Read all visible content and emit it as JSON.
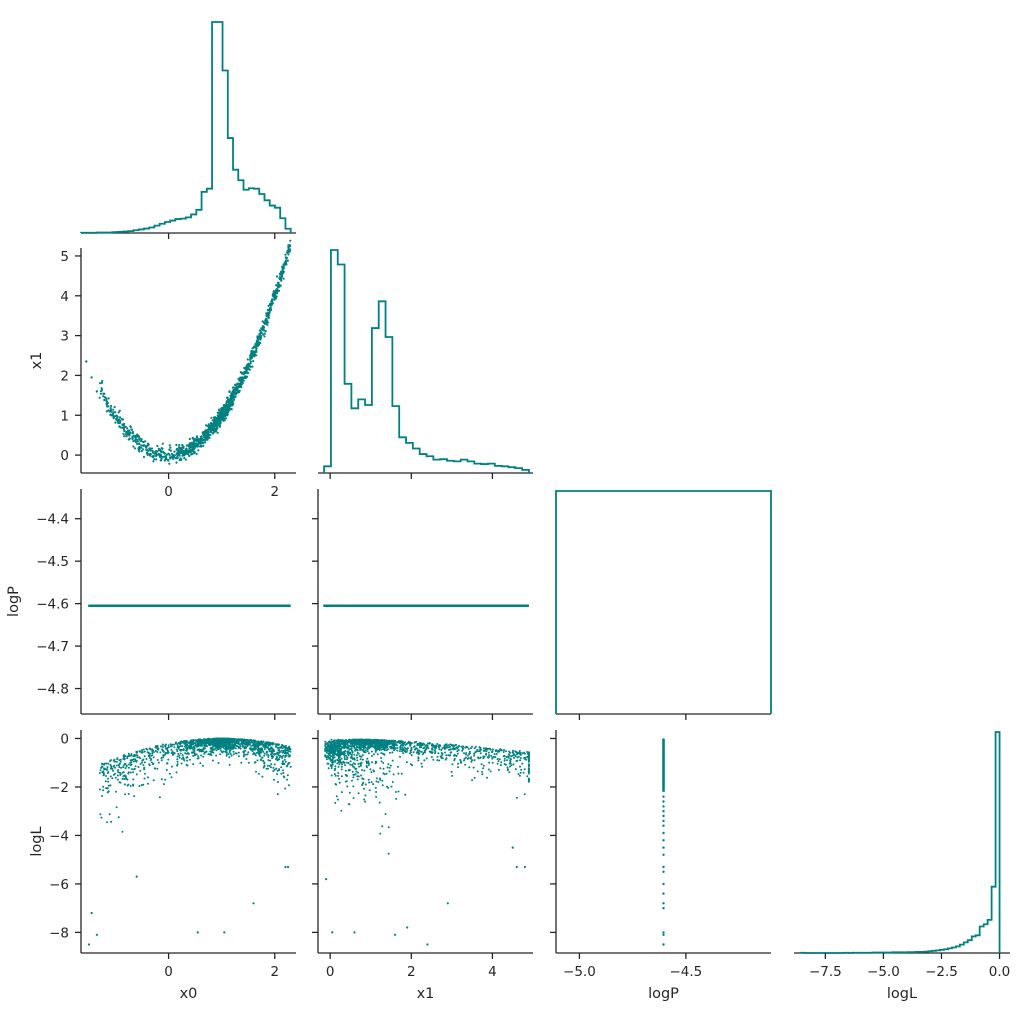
{
  "accent_color": "#008080",
  "text_color": "#262626",
  "chart_data": [
    {
      "id": "h_x0",
      "type": "area",
      "variable": "x0",
      "xlim": [
        -1.65,
        2.4
      ],
      "bin_edges": [
        -1.65,
        2.3
      ],
      "counts": [
        1,
        1,
        1,
        2,
        2,
        2,
        4,
        5,
        7,
        9,
        13,
        17,
        21,
        26,
        35,
        44,
        52,
        59,
        66,
        68,
        74,
        88,
        110,
        195,
        210,
        1000,
        1000,
        770,
        450,
        300,
        250,
        205,
        212,
        210,
        185,
        155,
        130,
        120,
        70,
        20
      ]
    },
    {
      "id": "s_x0_x1",
      "type": "scatter",
      "x_var": "x0",
      "y_var": "x1",
      "xlim": [
        -1.65,
        2.4
      ],
      "ylim": [
        -0.45,
        5.2
      ],
      "xticks": [
        "0",
        "2"
      ],
      "xtick_values": [
        0,
        2
      ],
      "yticks": [
        "0",
        "1",
        "2",
        "3",
        "4",
        "5"
      ],
      "ytick_values": [
        0,
        1,
        2,
        3,
        4,
        5
      ],
      "ylabel": "x1",
      "gen": "rosen_x0_x1"
    },
    {
      "id": "h_x1",
      "type": "area",
      "variable": "x1",
      "xlim": [
        -0.3,
        5.0
      ],
      "bin_edges": [
        -0.15,
        4.9
      ],
      "counts": [
        30,
        1000,
        935,
        400,
        290,
        330,
        305,
        650,
        770,
        610,
        300,
        160,
        135,
        110,
        85,
        75,
        60,
        62,
        55,
        52,
        60,
        52,
        42,
        40,
        42,
        32,
        30,
        26,
        22,
        14
      ]
    },
    {
      "id": "s_x0_logP",
      "type": "scatter",
      "x_var": "x0",
      "y_var": "logP",
      "xlim": [
        -1.65,
        2.4
      ],
      "ylim": [
        -4.86,
        -4.33
      ],
      "yticks": [
        "−4.4",
        "−4.5",
        "−4.6",
        "−4.7",
        "−4.8"
      ],
      "ytick_values": [
        -4.4,
        -4.5,
        -4.6,
        -4.7,
        -4.8
      ],
      "ylabel": "logP",
      "line": {
        "y": -4.605,
        "x_from": -1.5,
        "x_to": 2.3
      }
    },
    {
      "id": "s_x1_logP",
      "type": "scatter",
      "x_var": "x1",
      "y_var": "logP",
      "xlim": [
        -0.3,
        5.0
      ],
      "ylim": [
        -4.86,
        -4.33
      ],
      "line": {
        "y": -4.605,
        "x_from": -0.15,
        "x_to": 4.9
      }
    },
    {
      "id": "h_logP",
      "type": "area",
      "variable": "logP",
      "xlim": [
        -5.11,
        -4.1
      ],
      "bin_edges": [
        -5.11,
        -4.1
      ],
      "counts": [
        1
      ]
    },
    {
      "id": "s_x0_logL",
      "type": "scatter",
      "x_var": "x0",
      "y_var": "logL",
      "xlim": [
        -1.65,
        2.4
      ],
      "ylim": [
        -8.85,
        0.35
      ],
      "xticks": [
        "0",
        "2"
      ],
      "xtick_values": [
        0,
        2
      ],
      "yticks": [
        "0",
        "−2",
        "−4",
        "−6",
        "−8"
      ],
      "ytick_values": [
        0,
        -2,
        -4,
        -6,
        -8
      ],
      "xlabel": "x0",
      "ylabel": "logL",
      "gen": "rosen_x0_logL"
    },
    {
      "id": "s_x1_logL",
      "type": "scatter",
      "x_var": "x1",
      "y_var": "logL",
      "xlim": [
        -0.3,
        5.0
      ],
      "ylim": [
        -8.85,
        0.35
      ],
      "xticks": [
        "0",
        "2",
        "4"
      ],
      "xtick_values": [
        0,
        2,
        4
      ],
      "xlabel": "x1",
      "gen": "rosen_x1_logL"
    },
    {
      "id": "s_logP_logL",
      "type": "scatter",
      "x_var": "logP",
      "y_var": "logL",
      "xlim": [
        -5.11,
        -4.1
      ],
      "ylim": [
        -8.85,
        0.35
      ],
      "xticks": [
        "−5.0",
        "−4.5"
      ],
      "xtick_values": [
        -5.0,
        -4.5
      ],
      "xlabel": "logP",
      "gen": "vertical_logP"
    },
    {
      "id": "h_logL",
      "type": "area",
      "variable": "logL",
      "xlim": [
        -8.85,
        0.45
      ],
      "bin_edges": [
        -8.55,
        0.0
      ],
      "xticks": [
        "−7.5",
        "−5.0",
        "−2.5",
        "0.0"
      ],
      "xtick_values": [
        -7.5,
        -5.0,
        -2.5,
        0.0
      ],
      "xlabel": "logL",
      "counts": [
        1,
        0,
        0,
        0,
        0,
        0,
        0,
        0,
        0,
        0,
        0,
        1,
        0,
        1,
        1,
        1,
        1,
        1,
        2,
        2,
        2,
        2,
        2,
        3,
        3,
        3,
        3,
        4,
        4,
        5,
        5,
        6,
        8,
        10,
        12,
        14,
        17,
        21,
        25,
        30,
        38,
        48,
        58,
        75,
        80,
        120,
        130,
        150,
        300,
        1000
      ]
    }
  ]
}
